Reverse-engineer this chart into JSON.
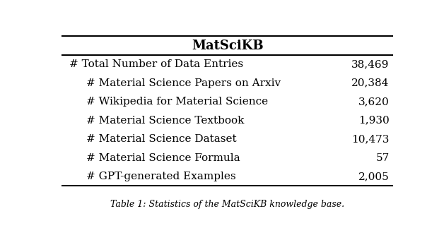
{
  "title": "MatSciKB",
  "rows": [
    {
      "label": "# Total Number of Data Entries",
      "value": "38,469",
      "indent": false
    },
    {
      "label": "# Material Science Papers on Arxiv",
      "value": "20,384",
      "indent": true
    },
    {
      "label": "# Wikipedia for Material Science",
      "value": "3,620",
      "indent": true
    },
    {
      "label": "# Material Science Textbook",
      "value": "1,930",
      "indent": true
    },
    {
      "label": "# Material Science Dataset",
      "value": "10,473",
      "indent": true
    },
    {
      "label": "# Material Science Formula",
      "value": "57",
      "indent": true
    },
    {
      "label": "# GPT-generated Examples",
      "value": "2,005",
      "indent": true
    }
  ],
  "caption": "Table 1: Statistics of the MatSciKB knowledge base.",
  "bg_color": "#ffffff",
  "text_color": "#000000",
  "title_fontsize": 13,
  "body_fontsize": 11,
  "caption_fontsize": 9
}
